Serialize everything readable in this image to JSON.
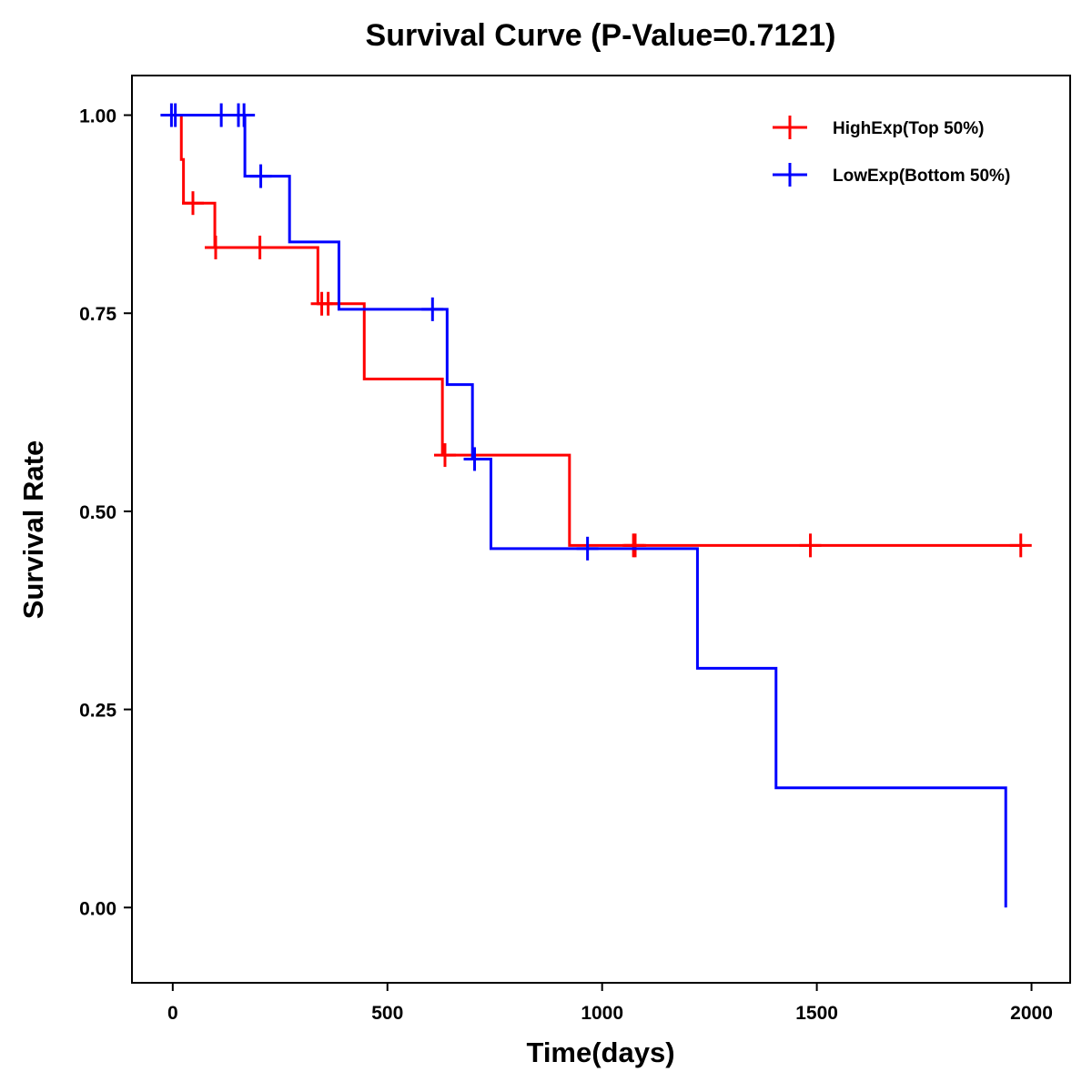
{
  "chart_data": {
    "type": "line",
    "subtype": "kaplan-meier-step",
    "title": "Survival Curve (P-Value=0.7121)",
    "xlabel": "Time(days)",
    "ylabel": "Survival Rate",
    "xlim": [
      -95,
      2090
    ],
    "ylim": [
      -0.095,
      1.05
    ],
    "xticks": [
      0,
      500,
      1000,
      1500,
      2000
    ],
    "xtick_labels": [
      "0",
      "500",
      "1000",
      "1500",
      "2000"
    ],
    "yticks": [
      0,
      0.25,
      0.5,
      0.75,
      1.0
    ],
    "ytick_labels": [
      "0.00",
      "0.25",
      "0.50",
      "0.75",
      "1.00"
    ],
    "grid": false,
    "legend_position": "top-right",
    "series": [
      {
        "name": "HighExp(Top 50%)",
        "color": "#ff0000",
        "steps": [
          {
            "t": 0,
            "s": 1.0
          },
          {
            "t": 20,
            "s": 0.944
          },
          {
            "t": 25,
            "s": 0.889
          },
          {
            "t": 98,
            "s": 0.833
          },
          {
            "t": 338,
            "s": 0.762
          },
          {
            "t": 446,
            "s": 0.667
          },
          {
            "t": 628,
            "s": 0.571
          },
          {
            "t": 924,
            "s": 0.457
          }
        ],
        "end_time": 1985,
        "censored": [
          {
            "t": 47,
            "s": 0.889
          },
          {
            "t": 100,
            "s": 0.833
          },
          {
            "t": 203,
            "s": 0.833
          },
          {
            "t": 347,
            "s": 0.762
          },
          {
            "t": 362,
            "s": 0.762
          },
          {
            "t": 634,
            "s": 0.571
          },
          {
            "t": 1073,
            "s": 0.457
          },
          {
            "t": 1077,
            "s": 0.457
          },
          {
            "t": 1485,
            "s": 0.457
          },
          {
            "t": 1975,
            "s": 0.457
          }
        ]
      },
      {
        "name": "LowExp(Bottom 50%)",
        "color": "#0000ff",
        "steps": [
          {
            "t": 0,
            "s": 1.0
          },
          {
            "t": 168,
            "s": 0.923
          },
          {
            "t": 272,
            "s": 0.84
          },
          {
            "t": 387,
            "s": 0.755
          },
          {
            "t": 639,
            "s": 0.66
          },
          {
            "t": 698,
            "s": 0.566
          },
          {
            "t": 741,
            "s": 0.453
          },
          {
            "t": 1222,
            "s": 0.302
          },
          {
            "t": 1405,
            "s": 0.151
          },
          {
            "t": 1940,
            "s": 0.0
          }
        ],
        "end_time": 1940,
        "censored": [
          {
            "t": -3,
            "s": 1.0
          },
          {
            "t": 6,
            "s": 1.0
          },
          {
            "t": 113,
            "s": 1.0
          },
          {
            "t": 153,
            "s": 1.0
          },
          {
            "t": 166,
            "s": 1.0
          },
          {
            "t": 205,
            "s": 0.923
          },
          {
            "t": 605,
            "s": 0.755
          },
          {
            "t": 703,
            "s": 0.566
          },
          {
            "t": 966,
            "s": 0.453
          }
        ]
      }
    ]
  }
}
